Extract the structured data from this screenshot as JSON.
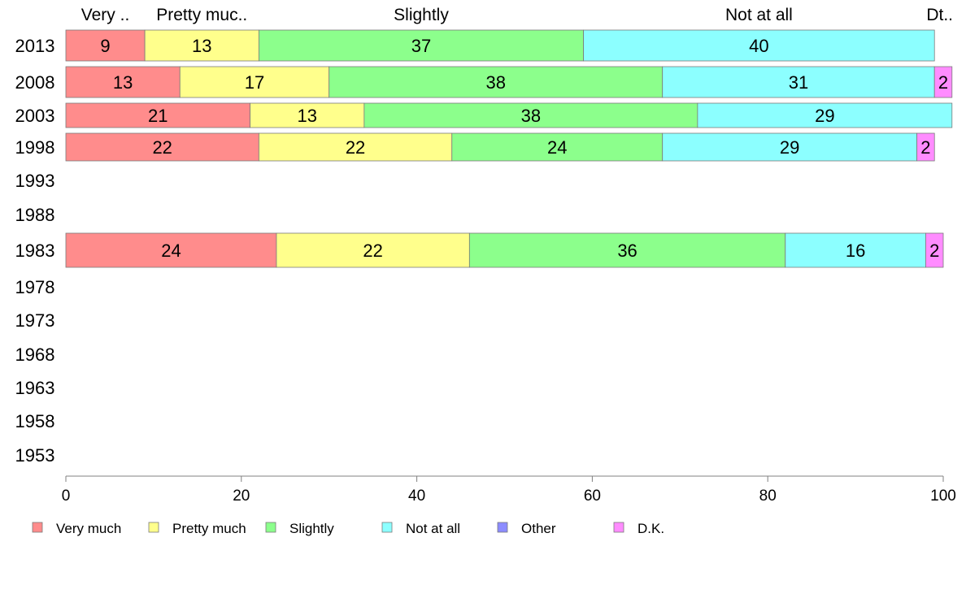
{
  "chart_data": {
    "type": "bar",
    "orientation": "horizontal",
    "stacked": true,
    "title": "",
    "xlabel": "",
    "ylabel": "",
    "xlim": [
      0,
      100
    ],
    "x_ticks": [
      "0",
      "20",
      "40",
      "60",
      "80",
      "100"
    ],
    "categories": [
      "2013",
      "2008",
      "2003",
      "1998",
      "1993",
      "1988",
      "1983",
      "1978",
      "1973",
      "1968",
      "1963",
      "1958",
      "1953"
    ],
    "top_labels": [
      "Very ..",
      "Pretty muc..",
      "Slightly",
      "Not at all",
      "",
      "Dt.."
    ],
    "series": [
      {
        "name": "Very much",
        "color": "#ff8c8c",
        "values": [
          9,
          13,
          21,
          22,
          null,
          null,
          24,
          null,
          null,
          null,
          null,
          null,
          null
        ]
      },
      {
        "name": "Pretty much",
        "color": "#ffff8c",
        "values": [
          13,
          17,
          13,
          22,
          null,
          null,
          22,
          null,
          null,
          null,
          null,
          null,
          null
        ]
      },
      {
        "name": "Slightly",
        "color": "#8cff8c",
        "values": [
          37,
          38,
          38,
          24,
          null,
          null,
          36,
          null,
          null,
          null,
          null,
          null,
          null
        ]
      },
      {
        "name": "Not at all",
        "color": "#8cffff",
        "values": [
          40,
          31,
          29,
          29,
          null,
          null,
          16,
          null,
          null,
          null,
          null,
          null,
          null
        ]
      },
      {
        "name": "Other",
        "color": "#8c8cff",
        "values": [
          0,
          0,
          0,
          0,
          null,
          null,
          0,
          null,
          null,
          null,
          null,
          null,
          null
        ]
      },
      {
        "name": "D.K.",
        "color": "#ff8cff",
        "values": [
          0,
          2,
          0,
          2,
          null,
          null,
          2,
          null,
          null,
          null,
          null,
          null,
          null
        ]
      }
    ],
    "legend_position": "bottom",
    "grid": false
  }
}
